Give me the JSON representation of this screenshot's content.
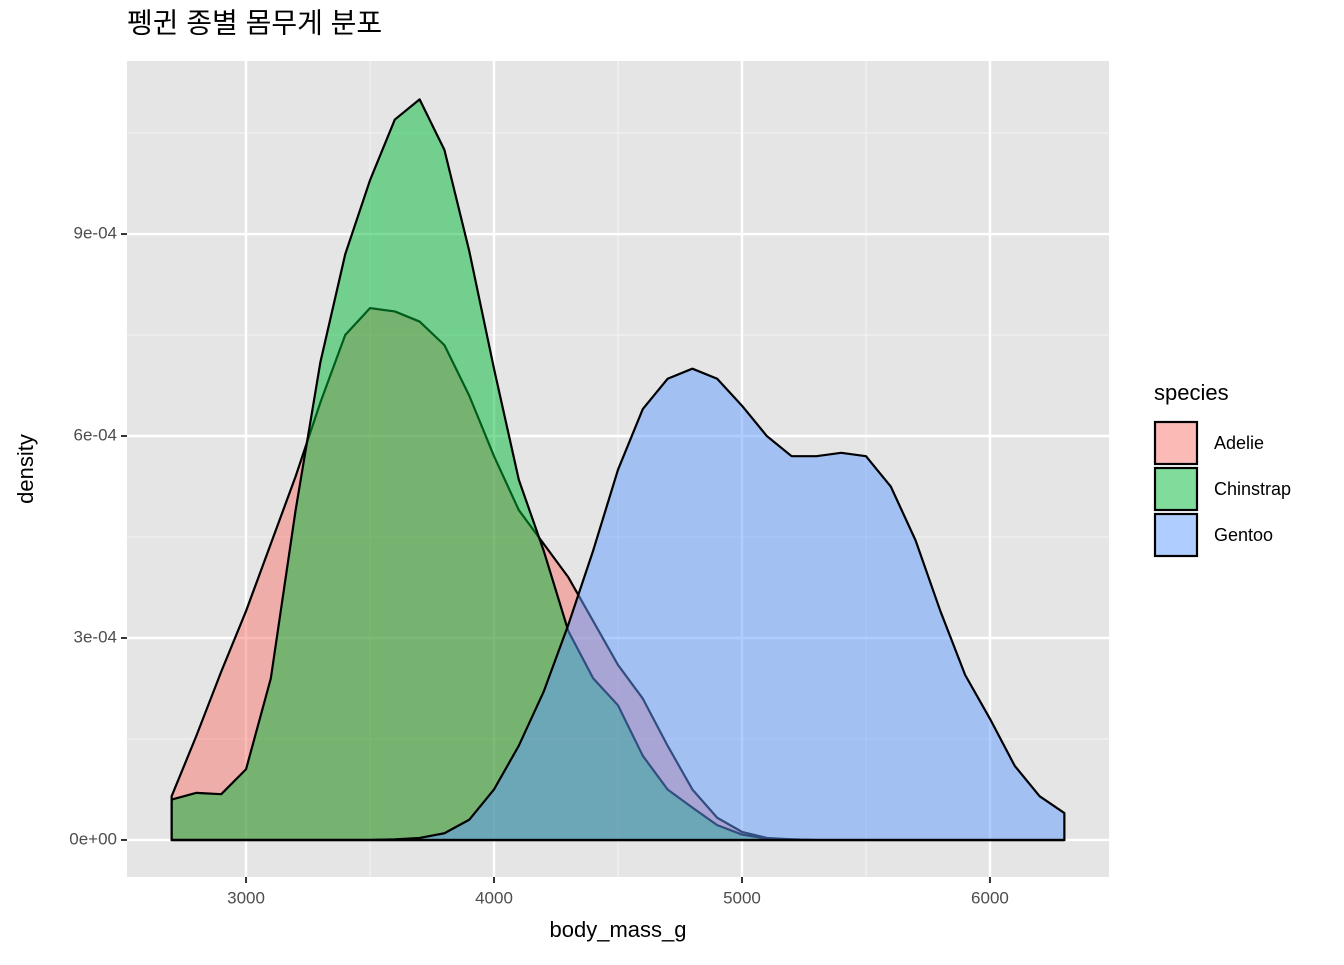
{
  "chart_data": {
    "type": "density",
    "title": "펭귄 종별 몸무게 분포",
    "x_label": "body_mass_g",
    "y_label": "density",
    "legend_title": "species",
    "legend": "right",
    "grid": true,
    "alpha": 0.5,
    "outline_color": "#000000",
    "xlim": [
      2520,
      6480
    ],
    "ylim": [
      -5.5e-05,
      0.001157
    ],
    "xticks": [
      3000,
      4000,
      5000,
      6000
    ],
    "yticks": [
      {
        "value": 0,
        "label": "0e+00"
      },
      {
        "value": 0.0003,
        "label": "3e-04"
      },
      {
        "value": 0.0006,
        "label": "6e-04"
      },
      {
        "value": 0.0009,
        "label": "9e-04"
      }
    ],
    "minor_xticks": [
      3500,
      4500,
      5500
    ],
    "minor_yticks": [
      0.00015,
      0.00045,
      0.00075,
      0.00105
    ],
    "x": [
      2700,
      2800,
      2900,
      3000,
      3100,
      3200,
      3300,
      3400,
      3500,
      3600,
      3700,
      3800,
      3900,
      4000,
      4100,
      4200,
      4300,
      4400,
      4500,
      4600,
      4700,
      4800,
      4900,
      5000,
      5100,
      5200,
      5300,
      5400,
      5500,
      5600,
      5700,
      5800,
      5900,
      6000,
      6100,
      6200,
      6300
    ],
    "series": [
      {
        "name": "Adelie",
        "color": "#F8766D",
        "values": [
          6.5e-05,
          0.000155,
          0.00025,
          0.00034,
          0.00044,
          0.00054,
          0.00065,
          0.00075,
          0.00079,
          0.000785,
          0.00077,
          0.000735,
          0.00066,
          0.00057,
          0.00049,
          0.00044,
          0.00039,
          0.000325,
          0.00026,
          0.00021,
          0.00014,
          7.5e-05,
          3.3e-05,
          1.2e-05,
          3e-06,
          1e-06,
          0,
          0,
          0,
          0,
          0,
          0,
          0,
          0,
          0,
          0,
          0
        ]
      },
      {
        "name": "Chinstrap",
        "color": "#00BA38",
        "values": [
          6e-05,
          7e-05,
          6.8e-05,
          0.000105,
          0.00024,
          0.00049,
          0.00071,
          0.00087,
          0.00098,
          0.00107,
          0.0011,
          0.001025,
          0.000875,
          0.0007,
          0.000535,
          0.00043,
          0.00031,
          0.00024,
          0.0002,
          0.000125,
          7.5e-05,
          4.8e-05,
          2.2e-05,
          8e-06,
          2e-06,
          1e-06,
          0,
          0,
          0,
          0,
          0,
          0,
          0,
          0,
          0,
          0,
          0
        ]
      },
      {
        "name": "Gentoo",
        "color": "#619CFF",
        "values": [
          0,
          0,
          0,
          0,
          0,
          0,
          0,
          0,
          0,
          1e-06,
          3e-06,
          1e-05,
          3e-05,
          7.5e-05,
          0.00014,
          0.00022,
          0.00032,
          0.00043,
          0.00055,
          0.00064,
          0.000685,
          0.0007,
          0.000685,
          0.000645,
          0.0006,
          0.00057,
          0.00057,
          0.000575,
          0.00057,
          0.000525,
          0.000445,
          0.00034,
          0.000245,
          0.00018,
          0.00011,
          6.5e-05,
          4e-05
        ]
      }
    ]
  }
}
